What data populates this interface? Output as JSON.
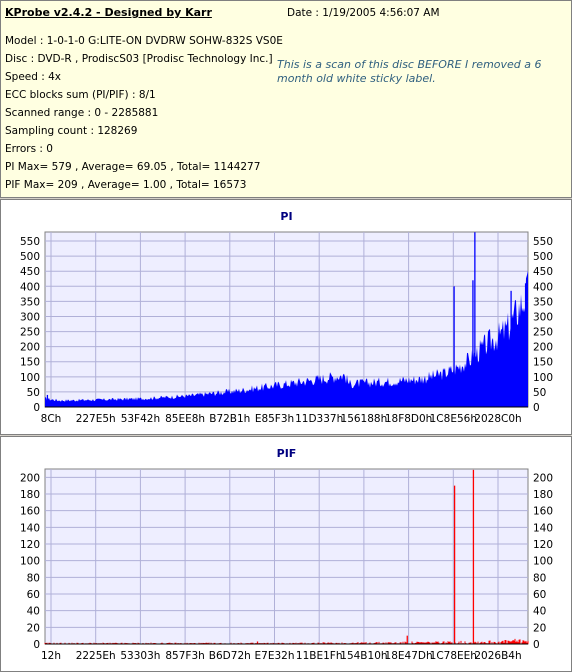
{
  "header": {
    "title": "KProbe v2.4.2 - Designed by Karr",
    "date": "Date : 1/19/2005 4:56:07 AM",
    "lines": [
      "Model : 1-0-1-0 G:LITE-ON DVDRW SOHW-832S  VS0E",
      "Disc : DVD-R , ProdiscS03   [Prodisc Technology Inc.]",
      "Speed : 4x",
      "ECC blocks sum (PI/PIF) : 8/1",
      "Scanned range : 0 - 2285881",
      "Sampling count : 128269",
      "Errors : 0",
      "PI Max= 579 , Average= 69.05 , Total= 1144277",
      "PIF Max= 209 , Average= 1.00 , Total= 16573"
    ],
    "note": "This is a scan of this disc BEFORE I removed a 6 month old white sticky label."
  },
  "chart_data": [
    {
      "type": "area",
      "title": "PI",
      "color": "#0000ff",
      "x_ticks": [
        "8Ch",
        "227E5h",
        "53F42h",
        "85EE8h",
        "B72B1h",
        "E85F3h",
        "11D337h",
        "156188h",
        "18F8D0h",
        "1C8E56h",
        "2028C0h"
      ],
      "y_ticks": [
        0,
        50,
        100,
        150,
        200,
        250,
        300,
        350,
        400,
        450,
        500,
        550
      ],
      "ylim": [
        0,
        580
      ],
      "x_range": [
        0,
        100
      ],
      "profile": [
        [
          0,
          28
        ],
        [
          3,
          22
        ],
        [
          10,
          24
        ],
        [
          20,
          28
        ],
        [
          30,
          38
        ],
        [
          40,
          55
        ],
        [
          50,
          78
        ],
        [
          55,
          90
        ],
        [
          62,
          108
        ],
        [
          63,
          78
        ],
        [
          70,
          85
        ],
        [
          78,
          95
        ],
        [
          83,
          115
        ],
        [
          85,
          130
        ],
        [
          88,
          160
        ],
        [
          90,
          190
        ],
        [
          92,
          220
        ],
        [
          94,
          240
        ],
        [
          96,
          270
        ],
        [
          98,
          330
        ],
        [
          100,
          390
        ]
      ],
      "spikes": [
        [
          0.5,
          40
        ],
        [
          84.7,
          400
        ],
        [
          88.6,
          420
        ],
        [
          89.0,
          579
        ],
        [
          96.5,
          385
        ],
        [
          99.5,
          410
        ]
      ]
    },
    {
      "type": "bar",
      "title": "PIF",
      "color": "#ff0000",
      "x_ticks": [
        "12h",
        "2225Eh",
        "53303h",
        "857F3h",
        "B6D72h",
        "E7E32h",
        "11BE1Fh",
        "154B10h",
        "18E47Dh",
        "1C78EEh",
        "2026B4h"
      ],
      "y_ticks": [
        0,
        20,
        40,
        60,
        80,
        100,
        120,
        140,
        160,
        180,
        200
      ],
      "ylim": [
        0,
        210
      ],
      "x_range": [
        0,
        100
      ],
      "baseline": [
        [
          0,
          1
        ],
        [
          50,
          1
        ],
        [
          80,
          2
        ],
        [
          95,
          3
        ],
        [
          100,
          5
        ]
      ],
      "spikes": [
        [
          44,
          3
        ],
        [
          75,
          10
        ],
        [
          84.8,
          190
        ],
        [
          88.7,
          209
        ],
        [
          97,
          4
        ]
      ]
    }
  ]
}
